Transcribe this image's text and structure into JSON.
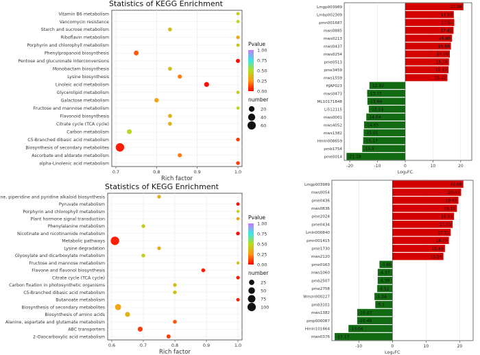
{
  "colors": {
    "up": "#d40000",
    "down": "#126b12",
    "panel_border": "#333333"
  },
  "chart_data": [
    {
      "type": "scatter",
      "title": "Statistics of KEGG Enrichment",
      "xlabel": "Rich factor",
      "ylabel": "",
      "xlim": [
        0.7,
        1.0
      ],
      "xticks": [
        "0.7",
        "0.8",
        "0.9",
        "1.0"
      ],
      "legend_pvalue_title": "Pvalue",
      "legend_pvalue_ticks": [
        "1.00",
        "0.75",
        "0.50",
        "0.25",
        "0.00"
      ],
      "legend_size_title": "number",
      "legend_size_ticks": [
        "20",
        "40",
        "60"
      ],
      "categories": [
        "Vitamin B6 metabolism",
        "Vancomycin resistance",
        "Starch and sucrose metabolism",
        "Riboflavin metabolism",
        "Porphyrin and chlorophyll metabolism",
        "Phenylpropanoid biosynthesis",
        "Pentose and glucuronate interconversions",
        "Monobactam biosynthesis",
        "Lysine biosynthesis",
        "Linoleic acid metabolism",
        "Glycerolipid metabolism",
        "Galactose metabolism",
        "Fructose and mannose metabolism",
        "Flavonoid biosynthesis",
        "Citrate cycle (TCA cycle)",
        "Carbon metabolism",
        "C5-Branched dibasic acid metabolism",
        "Biosynthesis of secondary metabolites",
        "Ascorbate and aldarate metabolism",
        "alpha-Linolenic acid metabolism"
      ],
      "points": [
        {
          "rich": 1.0,
          "p": 0.45,
          "n": 2
        },
        {
          "rich": 1.0,
          "p": 0.5,
          "n": 2
        },
        {
          "rich": 0.833,
          "p": 0.4,
          "n": 5
        },
        {
          "rich": 1.0,
          "p": 0.3,
          "n": 3
        },
        {
          "rich": 1.0,
          "p": 0.4,
          "n": 2
        },
        {
          "rich": 0.75,
          "p": 0.15,
          "n": 12
        },
        {
          "rich": 1.0,
          "p": 0.02,
          "n": 6
        },
        {
          "rich": 0.833,
          "p": 0.4,
          "n": 5
        },
        {
          "rich": 0.857,
          "p": 0.2,
          "n": 6
        },
        {
          "rich": 0.923,
          "p": 0.02,
          "n": 12
        },
        {
          "rich": 1.0,
          "p": 0.45,
          "n": 2
        },
        {
          "rich": 0.8,
          "p": 0.3,
          "n": 8
        },
        {
          "rich": 1.0,
          "p": 0.5,
          "n": 2
        },
        {
          "rich": 0.833,
          "p": 0.35,
          "n": 5
        },
        {
          "rich": 0.833,
          "p": 0.35,
          "n": 5
        },
        {
          "rich": 0.733,
          "p": 0.5,
          "n": 11
        },
        {
          "rich": 1.0,
          "p": 0.1,
          "n": 4
        },
        {
          "rich": 0.71,
          "p": 0.05,
          "n": 65
        },
        {
          "rich": 0.857,
          "p": 0.2,
          "n": 6
        },
        {
          "rich": 1.0,
          "p": 0.1,
          "n": 4
        }
      ]
    },
    {
      "type": "bar",
      "orientation": "horizontal",
      "xlabel": "Log₂FC",
      "xlim": [
        -22,
        24
      ],
      "xticks": [
        -20,
        -10,
        0,
        10,
        20
      ],
      "categories": [
        "Lmgp003989",
        "Lmbp002309",
        "pmn001687",
        "mws0885",
        "mws0213",
        "mws0437",
        "mws0254",
        "pme0513",
        "pme3459",
        "mws1559",
        "HJAP023",
        "mws0473",
        "ML10171848",
        "Li512115",
        "mws0001",
        "mws4052",
        "mws1382",
        "Hmln008659",
        "pmb1754",
        "pme0014"
      ],
      "values": [
        20.98,
        17.53,
        17.69,
        17.42,
        16.86,
        16.48,
        16.08,
        15.78,
        15.62,
        15.22,
        -12.92,
        -13.73,
        -13.64,
        -13.14,
        -14.04,
        -14.85,
        -15.01,
        -15.17,
        -15.5,
        -21.18
      ],
      "labels": [
        "20.98",
        "17.53",
        "17.69",
        "17.42",
        "16.86",
        "16.48",
        "16.08",
        "15.78",
        "15.62",
        "15.22",
        "-12.92",
        "-13.73",
        "-13.64",
        "-13.14",
        "-14.04",
        "-14.85",
        "-15.01",
        "-15.17",
        "-15.5",
        "-21.18"
      ]
    },
    {
      "type": "scatter",
      "title": "Statistics of KEGG Enrichment",
      "xlabel": "Rich factor",
      "ylabel": "",
      "xlim": [
        0.6,
        1.0
      ],
      "xticks": [
        "0.6",
        "0.7",
        "0.8",
        "0.9",
        "1.0"
      ],
      "legend_pvalue_title": "Pvalue",
      "legend_pvalue_ticks": [
        "1.00",
        "0.75",
        "0.50",
        "0.25",
        "0.00"
      ],
      "legend_size_title": "number",
      "legend_size_ticks": [
        "25",
        "50",
        "75",
        "100"
      ],
      "categories": [
        "Tropane, piperidine and pyridine alkaloid biosynthesis",
        "Pyruvate metabolism",
        "Porphyrin and chlorophyll metabolism",
        "Plant hormone signal transduction",
        "Phenylalanine metabolism",
        "Nicotinate and nicotinamide metabolism",
        "Metabolic pathways",
        "Lysine degradation",
        "Glyoxylate and dicarboxylate metabolism",
        "Fructose and mannose metabolism",
        "Flavone and flavonol biosynthesis",
        "Citrate cycle (TCA cycle)",
        "Carbon fixation in photosynthetic organisms",
        "C5-Branched dibasic acid metabolism",
        "Butanoate metabolism",
        "Biosynthesis of secondary metabolites",
        "Biosynthesis of amino acids",
        "Alanine, aspartate and glutamate metabolism",
        "ABC transporters",
        "2-Oxocarboxylic acid metabolism"
      ],
      "points": [
        {
          "rich": 0.75,
          "p": 0.35,
          "n": 6
        },
        {
          "rich": 1.0,
          "p": 0.02,
          "n": 4
        },
        {
          "rich": 1.0,
          "p": 0.45,
          "n": 2
        },
        {
          "rich": 1.0,
          "p": 0.3,
          "n": 3
        },
        {
          "rich": 0.7,
          "p": 0.45,
          "n": 7
        },
        {
          "rich": 1.0,
          "p": 0.02,
          "n": 6
        },
        {
          "rich": 0.61,
          "p": 0.05,
          "n": 105
        },
        {
          "rich": 0.75,
          "p": 0.35,
          "n": 6
        },
        {
          "rich": 0.7,
          "p": 0.45,
          "n": 7
        },
        {
          "rich": 1.0,
          "p": 0.4,
          "n": 2
        },
        {
          "rich": 0.89,
          "p": 0.05,
          "n": 8
        },
        {
          "rich": 1.0,
          "p": 0.05,
          "n": 5
        },
        {
          "rich": 0.8,
          "p": 0.4,
          "n": 6
        },
        {
          "rich": 0.8,
          "p": 0.4,
          "n": 6
        },
        {
          "rich": 1.0,
          "p": 0.05,
          "n": 4
        },
        {
          "rich": 0.62,
          "p": 0.3,
          "n": 40
        },
        {
          "rich": 0.65,
          "p": 0.35,
          "n": 20
        },
        {
          "rich": 0.8,
          "p": 0.15,
          "n": 8
        },
        {
          "rich": 0.69,
          "p": 0.1,
          "n": 20
        },
        {
          "rich": 0.78,
          "p": 0.1,
          "n": 10
        }
      ]
    },
    {
      "type": "bar",
      "orientation": "horizontal",
      "xlabel": "Log₂FC",
      "xlim": [
        -18,
        24
      ],
      "xticks": [
        -10,
        0,
        10,
        20
      ],
      "categories": [
        "Lmgp003989",
        "mws0054",
        "pme0436",
        "mws0836",
        "pme2024",
        "pme0434",
        "Lmln000840",
        "pmn001415",
        "pme1730",
        "mws2120",
        "pme0163",
        "mws1060",
        "pmb2507",
        "pme2758",
        "Wmzn000227",
        "pmb3101",
        "mws1382",
        "pmp000087",
        "Hmln101664",
        "mws0376"
      ],
      "values": [
        21.08,
        20.43,
        19.63,
        19.19,
        18.33,
        17.91,
        17.31,
        16.79,
        15.62,
        15.16,
        -3.86,
        -4.37,
        -4.38,
        -4.52,
        -5.34,
        -5.1,
        -10.47,
        -10.48,
        -13.06,
        -17.17
      ],
      "labels": [
        "21.08",
        "20.43",
        "19.63",
        "19.19",
        "18.33",
        "17.91",
        "17.31",
        "16.79",
        "15.62",
        "15.16",
        "-3.86",
        "-4.37",
        "-4.38",
        "-4.52",
        "-5.34",
        "-5.1",
        "-10.47",
        "-10.48",
        "-13.06",
        "-17.17"
      ]
    }
  ]
}
